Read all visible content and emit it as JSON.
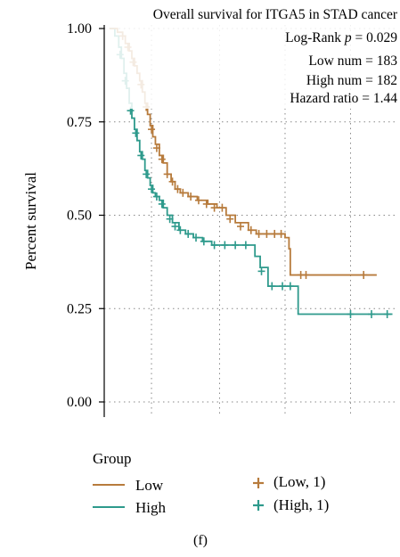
{
  "figure_label": "(f)",
  "chart_data": {
    "type": "line",
    "title": "Overall survival for ITGA5 in STAD cancer",
    "annotations": {
      "logrank_prefix": "Log-Rank",
      "logrank_p_symbol": "p",
      "logrank_value": "= 0.029",
      "low_num": "Low num = 183",
      "high_num": "High num = 182",
      "hazard_ratio": "Hazard ratio = 1.44"
    },
    "ylabel": "Percent survival",
    "xlabel": "",
    "ylim": [
      0,
      1
    ],
    "xlim": [
      0,
      1
    ],
    "yticks": [
      {
        "value": 0.0,
        "label": "0.00"
      },
      {
        "value": 0.25,
        "label": "0.25"
      },
      {
        "value": 0.5,
        "label": "0.50"
      },
      {
        "value": 0.75,
        "label": "0.75"
      },
      {
        "value": 1.0,
        "label": "1.00"
      }
    ],
    "xgrid": [
      0.16,
      0.42,
      0.67,
      0.92
    ],
    "grid": true,
    "legend": {
      "title": "Group",
      "placement": "bottom",
      "entries": [
        {
          "label": "Low",
          "kind": "line",
          "color": "#B77B3C"
        },
        {
          "label": "High",
          "kind": "line",
          "color": "#2E9A8C"
        },
        {
          "label": "(Low, 1)",
          "kind": "censor",
          "color": "#B77B3C"
        },
        {
          "label": "(High, 1)",
          "kind": "censor",
          "color": "#2E9A8C"
        }
      ]
    },
    "series": [
      {
        "name": "Low",
        "color": "#B77B3C",
        "steps": [
          [
            0,
            1.0
          ],
          [
            0.03,
            0.99
          ],
          [
            0.05,
            0.98
          ],
          [
            0.06,
            0.96
          ],
          [
            0.075,
            0.94
          ],
          [
            0.085,
            0.92
          ],
          [
            0.095,
            0.9
          ],
          [
            0.105,
            0.88
          ],
          [
            0.115,
            0.86
          ],
          [
            0.125,
            0.83
          ],
          [
            0.135,
            0.8
          ],
          [
            0.145,
            0.77
          ],
          [
            0.155,
            0.74
          ],
          [
            0.165,
            0.71
          ],
          [
            0.175,
            0.69
          ],
          [
            0.19,
            0.66
          ],
          [
            0.205,
            0.64
          ],
          [
            0.22,
            0.61
          ],
          [
            0.235,
            0.59
          ],
          [
            0.25,
            0.57
          ],
          [
            0.27,
            0.56
          ],
          [
            0.3,
            0.55
          ],
          [
            0.335,
            0.54
          ],
          [
            0.375,
            0.53
          ],
          [
            0.41,
            0.52
          ],
          [
            0.445,
            0.5
          ],
          [
            0.48,
            0.48
          ],
          [
            0.53,
            0.46
          ],
          [
            0.56,
            0.45
          ],
          [
            0.67,
            0.44
          ],
          [
            0.685,
            0.41
          ],
          [
            0.69,
            0.34
          ],
          [
            1.02,
            0.34
          ]
        ],
        "censors": [
          [
            0.05,
            0.98
          ],
          [
            0.07,
            0.95
          ],
          [
            0.09,
            0.91
          ],
          [
            0.12,
            0.85
          ],
          [
            0.14,
            0.79
          ],
          [
            0.16,
            0.73
          ],
          [
            0.18,
            0.68
          ],
          [
            0.2,
            0.65
          ],
          [
            0.22,
            0.61
          ],
          [
            0.24,
            0.59
          ],
          [
            0.26,
            0.57
          ],
          [
            0.28,
            0.56
          ],
          [
            0.31,
            0.55
          ],
          [
            0.34,
            0.54
          ],
          [
            0.37,
            0.53
          ],
          [
            0.4,
            0.52
          ],
          [
            0.43,
            0.52
          ],
          [
            0.46,
            0.49
          ],
          [
            0.5,
            0.47
          ],
          [
            0.54,
            0.46
          ],
          [
            0.57,
            0.45
          ],
          [
            0.6,
            0.45
          ],
          [
            0.63,
            0.45
          ],
          [
            0.655,
            0.45
          ],
          [
            0.73,
            0.34
          ],
          [
            0.75,
            0.34
          ],
          [
            0.97,
            0.34
          ]
        ]
      },
      {
        "name": "High",
        "color": "#2E9A8C",
        "steps": [
          [
            0,
            1.0
          ],
          [
            0.02,
            0.98
          ],
          [
            0.035,
            0.95
          ],
          [
            0.045,
            0.92
          ],
          [
            0.055,
            0.88
          ],
          [
            0.065,
            0.84
          ],
          [
            0.075,
            0.8
          ],
          [
            0.085,
            0.76
          ],
          [
            0.095,
            0.73
          ],
          [
            0.105,
            0.7
          ],
          [
            0.115,
            0.67
          ],
          [
            0.125,
            0.65
          ],
          [
            0.135,
            0.62
          ],
          [
            0.145,
            0.6
          ],
          [
            0.155,
            0.58
          ],
          [
            0.165,
            0.56
          ],
          [
            0.175,
            0.55
          ],
          [
            0.19,
            0.54
          ],
          [
            0.205,
            0.52
          ],
          [
            0.22,
            0.5
          ],
          [
            0.24,
            0.48
          ],
          [
            0.265,
            0.46
          ],
          [
            0.29,
            0.45
          ],
          [
            0.32,
            0.44
          ],
          [
            0.355,
            0.43
          ],
          [
            0.39,
            0.42
          ],
          [
            0.54,
            0.42
          ],
          [
            0.555,
            0.39
          ],
          [
            0.575,
            0.36
          ],
          [
            0.605,
            0.31
          ],
          [
            0.71,
            0.31
          ],
          [
            0.72,
            0.235
          ],
          [
            1.08,
            0.235
          ]
        ],
        "censors": [
          [
            0.04,
            0.93
          ],
          [
            0.06,
            0.86
          ],
          [
            0.08,
            0.78
          ],
          [
            0.1,
            0.72
          ],
          [
            0.12,
            0.66
          ],
          [
            0.14,
            0.61
          ],
          [
            0.16,
            0.57
          ],
          [
            0.18,
            0.55
          ],
          [
            0.2,
            0.53
          ],
          [
            0.23,
            0.49
          ],
          [
            0.25,
            0.47
          ],
          [
            0.27,
            0.46
          ],
          [
            0.3,
            0.45
          ],
          [
            0.33,
            0.44
          ],
          [
            0.36,
            0.43
          ],
          [
            0.4,
            0.42
          ],
          [
            0.44,
            0.42
          ],
          [
            0.48,
            0.42
          ],
          [
            0.52,
            0.42
          ],
          [
            0.58,
            0.35
          ],
          [
            0.62,
            0.31
          ],
          [
            0.66,
            0.31
          ],
          [
            0.69,
            0.31
          ],
          [
            0.92,
            0.235
          ],
          [
            1.0,
            0.235
          ],
          [
            1.06,
            0.235
          ]
        ]
      }
    ]
  }
}
